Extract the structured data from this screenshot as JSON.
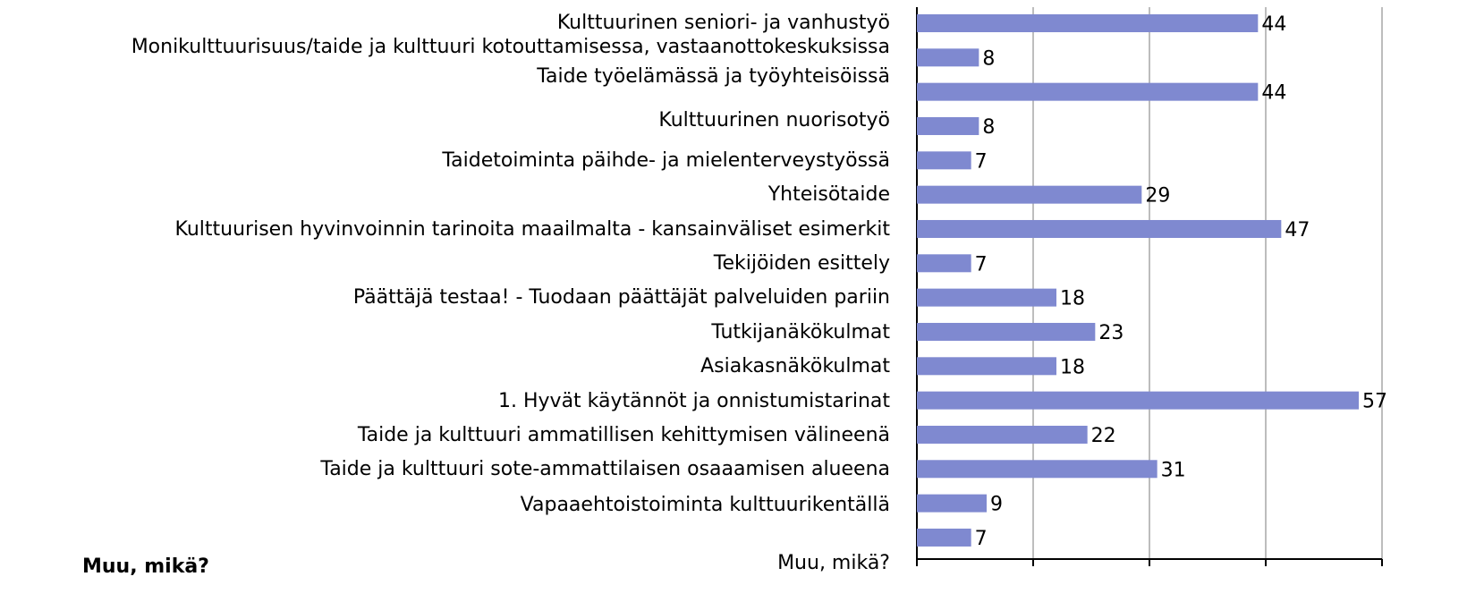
{
  "chart_data": {
    "type": "barh",
    "categories": [
      "Kulttuurinen seniori- ja vanhustyö",
      "Monikulttuurisuus/taide ja kulttuuri kotouttamisessa, vastaanottokeskuksissa",
      "Taide työelämässä ja työyhteisöissä",
      "Kulttuurinen nuorisotyö",
      "Taidetoiminta päihde- ja mielenterveystyössä",
      "Yhteisötaide",
      "Kulttuurisen hyvinvoinnin tarinoita maailmalta - kansainväliset esimerkit",
      "Tekijöiden esittely",
      "Päättäjä testaa! - Tuodaan päättäjät palveluiden pariin",
      "Tutkijanäkökulmat",
      "Asiakasnäkökulmat",
      "1.  Hyvät käytännöt ja onnistumistarinat",
      "Taide ja kulttuuri ammatillisen kehittymisen välineenä",
      "Taide ja kulttuuri sote-ammattilaisen osaaamisen alueena",
      "Vapaaehtoistoiminta kulttuurikentällä",
      "Muu, mikä?"
    ],
    "values": [
      44,
      8,
      44,
      8,
      7,
      29,
      47,
      7,
      18,
      23,
      18,
      57,
      22,
      31,
      9,
      7
    ],
    "color": "#7f89d0",
    "xlim": [
      0,
      60
    ],
    "xticks": [
      0,
      15,
      30,
      45,
      60
    ],
    "grid": true,
    "note": "Muu, mikä?"
  }
}
